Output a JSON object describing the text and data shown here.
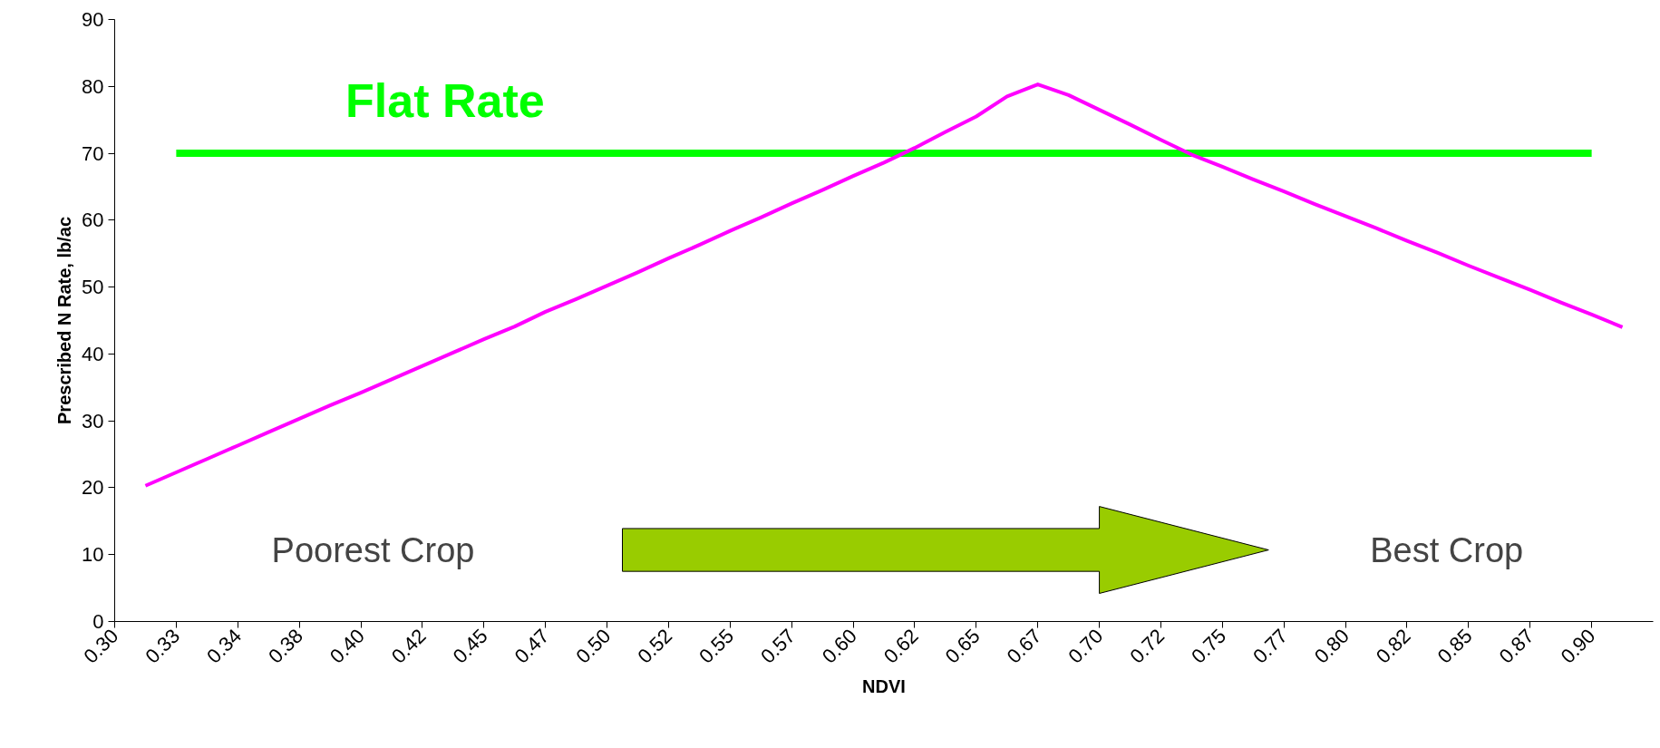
{
  "chart_data": {
    "type": "line",
    "xlabel": "NDVI",
    "ylabel": "Prescribed N Rate, lb/ac",
    "categories": [
      "0.30",
      null,
      "0.33",
      null,
      "0.34",
      null,
      "0.38",
      null,
      "0.40",
      null,
      "0.42",
      null,
      "0.45",
      null,
      "0.47",
      null,
      "0.50",
      null,
      "0.52",
      null,
      "0.55",
      null,
      "0.57",
      null,
      "0.60",
      null,
      "0.62",
      null,
      "0.65",
      null,
      "0.67",
      null,
      "0.70",
      null,
      "0.72",
      null,
      "0.75",
      null,
      "0.77",
      null,
      "0.80",
      null,
      "0.82",
      null,
      "0.85",
      null,
      "0.87",
      null,
      "0.90",
      null
    ],
    "series": [
      {
        "name": "Flat Rate",
        "color": "#00ff00",
        "values": [
          null,
          null,
          70,
          70,
          70,
          70,
          70,
          70,
          70,
          70,
          70,
          70,
          70,
          70,
          70,
          70,
          70,
          70,
          70,
          70,
          70,
          70,
          70,
          70,
          70,
          70,
          70,
          70,
          70,
          70,
          70,
          70,
          70,
          70,
          70,
          70,
          70,
          70,
          70,
          70,
          70,
          70,
          70,
          70,
          70,
          70,
          70,
          70,
          70,
          null
        ]
      },
      {
        "color": "#ff00ff",
        "values": [
          null,
          20.3,
          22.3,
          24.3,
          26.3,
          28.3,
          30.3,
          32.3,
          34.2,
          36.2,
          38.2,
          40.2,
          42.2,
          44.1,
          46.3,
          48.2,
          50.2,
          52.2,
          54.3,
          56.3,
          58.4,
          60.4,
          62.5,
          64.5,
          66.6,
          68.6,
          70.8,
          73.2,
          75.5,
          78.5,
          80.3,
          78.7,
          76.5,
          74.3,
          72,
          69.8,
          68.0,
          66.1,
          64.3,
          62.4,
          60.6,
          58.8,
          56.9,
          55.1,
          53.2,
          51.4,
          49.6,
          47.7,
          45.9,
          44.0
        ]
      }
    ],
    "ylim": [
      0,
      90
    ],
    "yticks": [
      0,
      10,
      20,
      30,
      40,
      50,
      60,
      70,
      80,
      90
    ],
    "grid": false,
    "marker": "none",
    "line_style": "solid",
    "annotations": [
      "Poorest Crop",
      "Best Crop"
    ]
  }
}
